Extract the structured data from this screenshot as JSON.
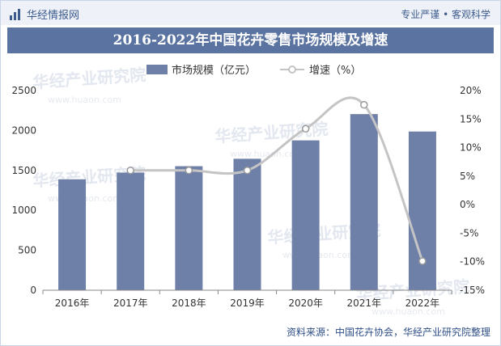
{
  "header": {
    "brand": "华经情报网",
    "slogan": "专业严谨 • 客观科学"
  },
  "title": "2016-2022年中国花卉零售市场规模及增速",
  "legend": {
    "bar": "市场规模（亿元）",
    "line": "增速（%）"
  },
  "source": "资料来源：中国花卉协会，华经产业研究院整理",
  "watermark": {
    "cn": "华经产业研究院",
    "en": "www.huaon.com"
  },
  "colors": {
    "bar": "#6e7fa8",
    "line": "#c4c4c4",
    "title_bg": "#5a73a0",
    "text": "#333333"
  },
  "chart_data": {
    "type": "bar",
    "categories": [
      "2016年",
      "2017年",
      "2018年",
      "2019年",
      "2020年",
      "2021年",
      "2022年"
    ],
    "series": [
      {
        "name": "市场规模（亿元）",
        "type": "bar",
        "axis": "left",
        "values": [
          1389,
          1473,
          1553,
          1646,
          1876,
          2205,
          1987
        ]
      },
      {
        "name": "增速（%）",
        "type": "line",
        "axis": "right",
        "values": [
          null,
          6.0,
          6.0,
          6.0,
          13.3,
          17.5,
          -9.9
        ]
      }
    ],
    "y_left": {
      "min": 0,
      "max": 2500,
      "ticks": [
        0,
        500,
        1000,
        1500,
        2000,
        2500
      ]
    },
    "y_right": {
      "min": -15,
      "max": 20,
      "ticks": [
        "-15%",
        "-10%",
        "-5%",
        "0%",
        "5%",
        "10%",
        "15%",
        "20%"
      ]
    },
    "grid": false,
    "legend_position": "top-left"
  }
}
